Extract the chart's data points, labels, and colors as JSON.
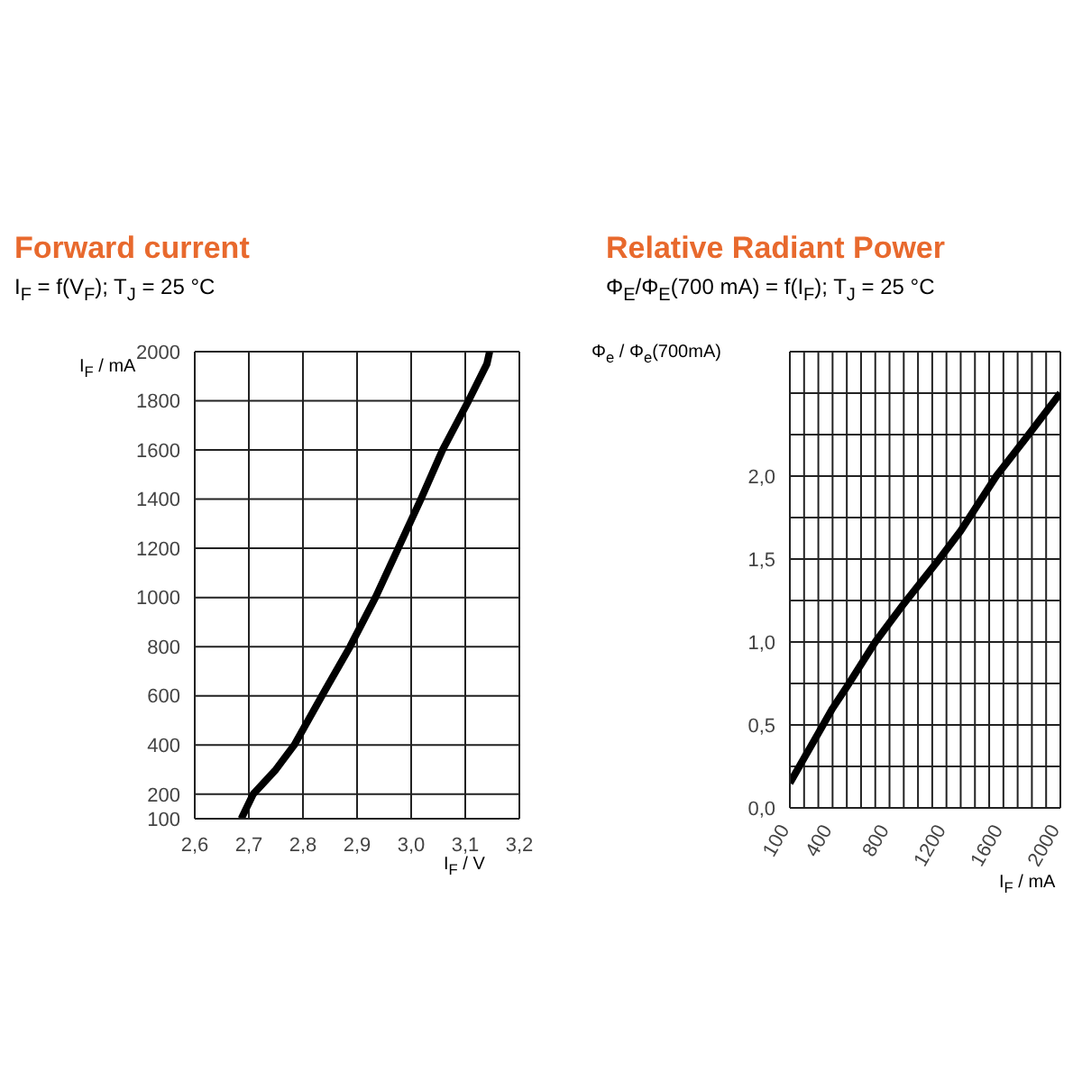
{
  "chart_data": [
    {
      "type": "line",
      "title": "Forward current",
      "subtitle": "I$_{F}$ = f(V$_{F}$); T$_{J}$ = 25 °C",
      "xlabel": "I$_{F}$ / V",
      "ylabel": "I$_{F}$ / mA",
      "series": [
        {
          "color": "#000000",
          "x": [
            2.686,
            2.708,
            2.75,
            2.784,
            2.835,
            2.887,
            2.934,
            2.976,
            3.018,
            3.058,
            3.106,
            3.14,
            3.145
          ],
          "values": [
            100,
            200,
            300,
            400,
            600,
            800,
            1000,
            1200,
            1400,
            1600,
            1800,
            1950,
            2000
          ]
        }
      ],
      "xlim": [
        2.6,
        3.2
      ],
      "xticks": [
        {
          "value": 2.6,
          "label": "2,6"
        },
        {
          "value": 2.7,
          "label": "2,7"
        },
        {
          "value": 2.8,
          "label": "2,8"
        },
        {
          "value": 2.9,
          "label": "2,9"
        },
        {
          "value": 3.0,
          "label": "3,0"
        },
        {
          "value": 3.1,
          "label": "3,1"
        },
        {
          "value": 3.2,
          "label": "3,2"
        }
      ],
      "ylim": [
        100,
        2000
      ],
      "yticks": [
        100,
        200,
        400,
        600,
        800,
        1000,
        1200,
        1400,
        1600,
        1800,
        2000
      ],
      "grid": true,
      "marker": "none",
      "line_style": "solid"
    },
    {
      "type": "line",
      "title": "Relative  Radiant Power",
      "subtitle": "Φ$_{E}$/Φ$_{E}$(700 mA) = f(I$_{F}$); T$_{J}$ = 25 °C",
      "xlabel": "I$_{F}$ / mA",
      "ylabel": "Φ$_{e}$ / Φ$_{e}$(700mA)",
      "series": [
        {
          "color": "#000000",
          "x": [
            100,
            200,
            300,
            400,
            500,
            700,
            900,
            1150,
            1300,
            1550,
            1750,
            2000
          ],
          "values": [
            0.15,
            0.3,
            0.45,
            0.6,
            0.73,
            1.0,
            1.23,
            1.5,
            1.67,
            2.0,
            2.22,
            2.5
          ]
        }
      ],
      "xlim": [
        100,
        2000
      ],
      "xticks": [
        100,
        {
          "value": 200,
          "label": null
        },
        {
          "value": 300,
          "label": null
        },
        400,
        {
          "value": 500,
          "label": null
        },
        {
          "value": 600,
          "label": null
        },
        {
          "value": 700,
          "label": null
        },
        800,
        {
          "value": 900,
          "label": null
        },
        {
          "value": 1000,
          "label": null
        },
        {
          "value": 1100,
          "label": null
        },
        1200,
        {
          "value": 1300,
          "label": null
        },
        {
          "value": 1400,
          "label": null
        },
        {
          "value": 1500,
          "label": null
        },
        1600,
        {
          "value": 1700,
          "label": null
        },
        {
          "value": 1800,
          "label": null
        },
        {
          "value": 1900,
          "label": null
        },
        2000
      ],
      "ylim": [
        0,
        2.75
      ],
      "yticks": [
        {
          "value": 0,
          "label": "0,0"
        },
        {
          "value": 0.25,
          "label": null
        },
        {
          "value": 0.5,
          "label": "0,5"
        },
        {
          "value": 0.75,
          "label": null
        },
        {
          "value": 1,
          "label": "1,0"
        },
        {
          "value": 1.25,
          "label": null
        },
        {
          "value": 1.5,
          "label": "1,5"
        },
        {
          "value": 1.75,
          "label": null
        },
        {
          "value": 2,
          "label": "2,0"
        },
        {
          "value": 2.25,
          "label": null
        },
        {
          "value": 2.5,
          "label": null
        }
      ],
      "grid": true,
      "marker": "none",
      "line_style": "solid"
    }
  ]
}
